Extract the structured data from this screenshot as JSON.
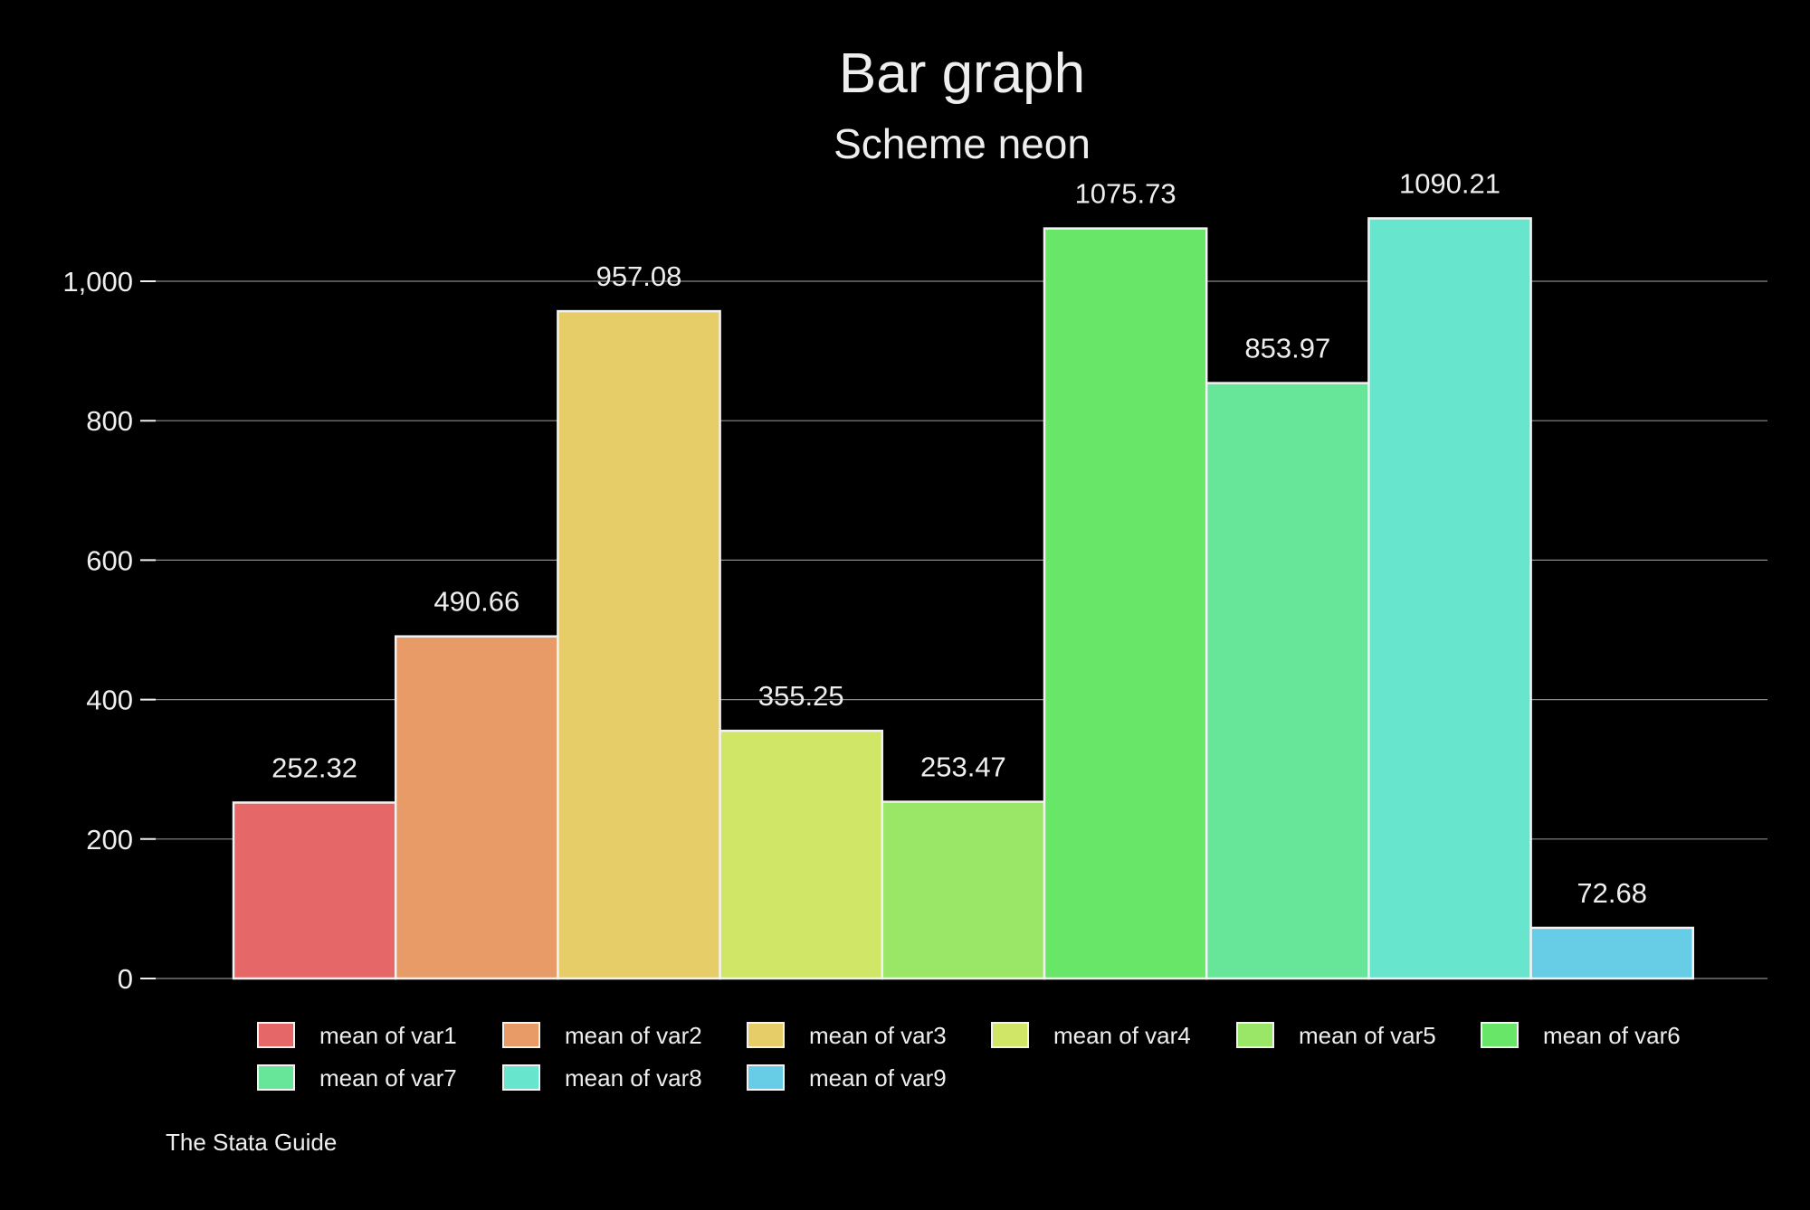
{
  "chart_data": {
    "type": "bar",
    "title": "Bar graph",
    "subtitle": "Scheme neon",
    "note": "The Stata Guide",
    "xlabel": "",
    "ylabel": "",
    "ylim": [
      0,
      1100
    ],
    "yticks": [
      0,
      200,
      400,
      600,
      800,
      1000
    ],
    "ytick_labels": [
      "0",
      "200",
      "400",
      "600",
      "800",
      "1,000"
    ],
    "grid": true,
    "legend_position": "bottom",
    "series": [
      {
        "name": "mean of var1",
        "value": 252.32,
        "label": "252.32",
        "color": "#e66767"
      },
      {
        "name": "mean of var2",
        "value": 490.66,
        "label": "490.66",
        "color": "#e89a67"
      },
      {
        "name": "mean of var3",
        "value": 957.08,
        "label": "957.08",
        "color": "#e7cd67"
      },
      {
        "name": "mean of var4",
        "value": 355.25,
        "label": "355.25",
        "color": "#cfe667"
      },
      {
        "name": "mean of var5",
        "value": 253.47,
        "label": "253.47",
        "color": "#9ae667"
      },
      {
        "name": "mean of var6",
        "value": 1075.73,
        "label": "1075.73",
        "color": "#67e667"
      },
      {
        "name": "mean of var7",
        "value": 853.97,
        "label": "853.97",
        "color": "#67e69a"
      },
      {
        "name": "mean of var8",
        "value": 1090.21,
        "label": "1090.21",
        "color": "#67e6cd"
      },
      {
        "name": "mean of var9",
        "value": 72.68,
        "label": "72.68",
        "color": "#67cde6"
      }
    ]
  }
}
